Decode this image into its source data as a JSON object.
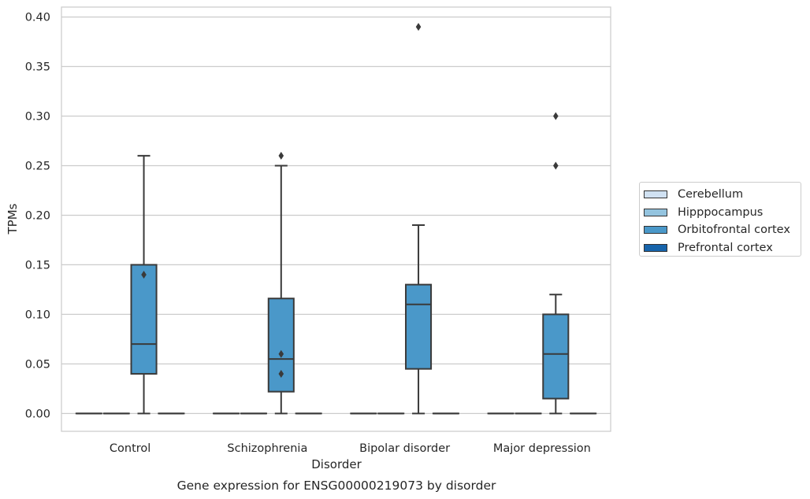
{
  "chart_data": {
    "type": "box",
    "title": "Gene expression for ENSG00000219073 by disorder",
    "xlabel": "Disorder",
    "ylabel": "TPMs",
    "ylim": [
      -0.018,
      0.41
    ],
    "yticks": [
      "0.00",
      "0.05",
      "0.10",
      "0.15",
      "0.20",
      "0.25",
      "0.30",
      "0.35",
      "0.40"
    ],
    "grid": true,
    "legend_position": "right",
    "categories": [
      "Control",
      "Schizophrenia",
      "Bipolar disorder",
      "Major depression"
    ],
    "series": [
      {
        "name": "Cerebellum",
        "color": "#d0e1f2",
        "boxes": [
          {
            "q1": 0,
            "median": 0,
            "q3": 0,
            "whislo": 0,
            "whishi": 0,
            "fliers": []
          },
          {
            "q1": 0,
            "median": 0,
            "q3": 0,
            "whislo": 0,
            "whishi": 0,
            "fliers": []
          },
          {
            "q1": 0,
            "median": 0,
            "q3": 0,
            "whislo": 0,
            "whishi": 0,
            "fliers": []
          },
          {
            "q1": 0,
            "median": 0,
            "q3": 0,
            "whislo": 0,
            "whishi": 0,
            "fliers": []
          }
        ]
      },
      {
        "name": "Hipppocampus",
        "color": "#94c4df",
        "boxes": [
          {
            "q1": 0,
            "median": 0,
            "q3": 0,
            "whislo": 0,
            "whishi": 0,
            "fliers": []
          },
          {
            "q1": 0,
            "median": 0,
            "q3": 0,
            "whislo": 0,
            "whishi": 0,
            "fliers": []
          },
          {
            "q1": 0,
            "median": 0,
            "q3": 0,
            "whislo": 0,
            "whishi": 0,
            "fliers": []
          },
          {
            "q1": 0,
            "median": 0,
            "q3": 0,
            "whislo": 0,
            "whishi": 0,
            "fliers": []
          }
        ]
      },
      {
        "name": "Orbitofrontal cortex",
        "color": "#4a98c9",
        "boxes": [
          {
            "q1": 0.04,
            "median": 0.07,
            "q3": 0.15,
            "whislo": 0,
            "whishi": 0.26,
            "fliers": [
              0.14
            ]
          },
          {
            "q1": 0.022,
            "median": 0.055,
            "q3": 0.116,
            "whislo": 0,
            "whishi": 0.25,
            "fliers": [
              0.26,
              0.06,
              0.04
            ]
          },
          {
            "q1": 0.045,
            "median": 0.11,
            "q3": 0.13,
            "whislo": 0,
            "whishi": 0.19,
            "fliers": [
              0.39
            ]
          },
          {
            "q1": 0.015,
            "median": 0.06,
            "q3": 0.1,
            "whislo": 0,
            "whishi": 0.12,
            "fliers": [
              0.3,
              0.25
            ]
          }
        ]
      },
      {
        "name": "Prefrontal cortex",
        "color": "#1764ab",
        "boxes": [
          {
            "q1": 0,
            "median": 0,
            "q3": 0,
            "whislo": 0,
            "whishi": 0,
            "fliers": []
          },
          {
            "q1": 0,
            "median": 0,
            "q3": 0,
            "whislo": 0,
            "whishi": 0,
            "fliers": []
          },
          {
            "q1": 0,
            "median": 0,
            "q3": 0,
            "whislo": 0,
            "whishi": 0,
            "fliers": []
          },
          {
            "q1": 0,
            "median": 0,
            "q3": 0,
            "whislo": 0,
            "whishi": 0,
            "fliers": []
          }
        ]
      }
    ]
  }
}
